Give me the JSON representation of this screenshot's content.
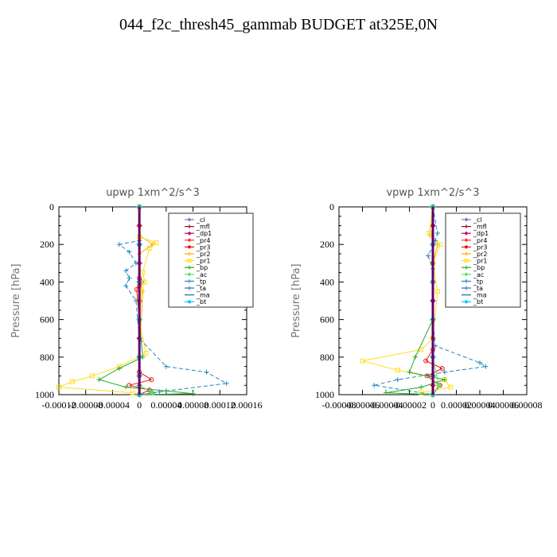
{
  "page": {
    "title": "044_f2c_thresh45_gammab  BUDGET at325E,0N"
  },
  "chart_data": [
    {
      "type": "line",
      "title": "upwp   1xm^2/s^3",
      "ylabel": "Pressure  [hPa]",
      "ylim": [
        1000,
        0
      ],
      "yticks": [
        0,
        200,
        400,
        600,
        800,
        1000
      ],
      "xlim": [
        -0.00012,
        0.00016
      ],
      "xtick_labels": [
        "-0.00012",
        "-0.00008",
        "-0.00004",
        "0",
        "0.00004",
        "0.00008",
        "0.00012",
        "0.00016"
      ],
      "xtick_values": [
        -0.00012,
        -8e-05,
        -4e-05,
        0,
        4e-05,
        8e-05,
        0.00012,
        0.00016
      ],
      "legend_position": "top-right",
      "series": [
        {
          "name": "_cl",
          "color": "#9966cc",
          "marker": "diamond",
          "x": [
            0,
            0,
            0,
            0,
            0,
            0,
            0,
            0,
            0,
            0,
            0
          ],
          "y": [
            0,
            100,
            200,
            300,
            400,
            500,
            600,
            700,
            800,
            900,
            1000
          ]
        },
        {
          "name": "_mfl",
          "color": "#990033",
          "marker": "plus",
          "x": [
            0,
            0,
            0,
            0,
            0,
            0,
            0,
            0,
            0,
            0,
            0
          ],
          "y": [
            0,
            100,
            200,
            300,
            400,
            500,
            600,
            700,
            800,
            900,
            1000
          ]
        },
        {
          "name": "_dp1",
          "color": "#cc0066",
          "marker": "diamond",
          "x": [
            0,
            0,
            0,
            0,
            0,
            0,
            0,
            0,
            0,
            0,
            0
          ],
          "y": [
            0,
            100,
            200,
            300,
            400,
            500,
            600,
            700,
            800,
            900,
            1000
          ]
        },
        {
          "name": "_pr4",
          "color": "#ff3333",
          "marker": "diamond",
          "x": [
            0,
            0,
            0,
            0,
            0,
            0,
            0,
            0,
            0,
            0,
            0
          ],
          "y": [
            0,
            100,
            200,
            300,
            400,
            500,
            600,
            700,
            800,
            900,
            1000
          ]
        },
        {
          "name": "_pr3",
          "color": "#ee1111",
          "marker": "circle",
          "x": [
            0,
            0,
            0,
            3e-06,
            0,
            -4e-06,
            0,
            0,
            0,
            1.8e-05,
            -1.5e-05,
            1.5e-05,
            0
          ],
          "y": [
            0,
            200,
            380,
            400,
            420,
            440,
            600,
            800,
            880,
            920,
            950,
            975,
            1000
          ]
        },
        {
          "name": "_pr2",
          "color": "#ffaa00",
          "marker": "plus",
          "x": [
            0,
            0,
            2e-05,
            0,
            0,
            5e-06,
            0,
            0
          ],
          "y": [
            0,
            150,
            200,
            250,
            400,
            450,
            800,
            1000
          ]
        },
        {
          "name": "_pr1",
          "color": "#ffdd22",
          "marker": "square",
          "x": [
            0,
            0,
            2.5e-05,
            1.5e-05,
            5e-06,
            8e-06,
            3e-06,
            0,
            1e-05,
            -3e-05,
            -7e-05,
            -0.0001,
            -0.00012,
            -1e-05,
            0
          ],
          "y": [
            0,
            160,
            190,
            220,
            350,
            400,
            450,
            600,
            780,
            850,
            900,
            930,
            960,
            990,
            1000
          ]
        },
        {
          "name": "_bp",
          "color": "#22aa22",
          "marker": "plus",
          "x": [
            0,
            0,
            0,
            0,
            5e-06,
            -3e-05,
            -6e-05,
            -2e-05,
            4e-05,
            8e-05,
            0
          ],
          "y": [
            0,
            200,
            400,
            600,
            800,
            860,
            920,
            960,
            980,
            995,
            1000
          ]
        },
        {
          "name": "_ac",
          "color": "#66dd66",
          "marker": "diamond",
          "x": [
            0,
            0,
            0,
            0,
            0,
            0,
            2e-05,
            0
          ],
          "y": [
            0,
            200,
            400,
            600,
            800,
            950,
            990,
            1000
          ]
        },
        {
          "name": "_tp",
          "color": "#2288bb",
          "marker": "plus",
          "x": [
            0,
            0,
            -3e-05,
            -1.5e-05,
            -5e-06,
            -2e-05,
            -1.5e-05,
            -2e-05,
            -5e-06,
            0,
            4e-05,
            0.0001,
            0.00013,
            3e-05,
            0
          ],
          "y": [
            0,
            180,
            200,
            240,
            300,
            340,
            380,
            420,
            500,
            700,
            850,
            880,
            940,
            985,
            1000
          ]
        },
        {
          "name": "_ta",
          "color": "#3366cc",
          "marker": "plus",
          "x": [
            0,
            0,
            0,
            0,
            0,
            0,
            0,
            0
          ],
          "y": [
            0,
            200,
            400,
            600,
            800,
            900,
            950,
            1000
          ]
        },
        {
          "name": "_ma",
          "color": "#0077aa",
          "marker": "none",
          "x": [
            0,
            0,
            0,
            0,
            0,
            0,
            0
          ],
          "y": [
            0,
            200,
            400,
            600,
            800,
            900,
            1000
          ]
        },
        {
          "name": "_bt",
          "color": "#00ccee",
          "marker": "circle",
          "x": [
            0,
            0,
            0,
            0,
            0,
            0,
            0
          ],
          "y": [
            0,
            200,
            400,
            600,
            800,
            900,
            1000
          ]
        }
      ]
    },
    {
      "type": "line",
      "title": "vpwp   1xm^2/s^3",
      "ylabel": "Pressure  [hPa]",
      "ylim": [
        1000,
        0
      ],
      "yticks": [
        0,
        200,
        400,
        600,
        800,
        1000
      ],
      "xlim": [
        -8e-05,
        8e-05
      ],
      "xtick_labels": [
        "-0.00008",
        "-0.00006",
        "-0.00004",
        "-0.00002",
        "0",
        "0.00002",
        "0.00004",
        "0.00006",
        "0.00008"
      ],
      "xtick_values": [
        -8e-05,
        -6e-05,
        -4e-05,
        -2e-05,
        0,
        2e-05,
        4e-05,
        6e-05,
        8e-05
      ],
      "legend_position": "top-right",
      "series": [
        {
          "name": "_cl",
          "color": "#9966cc",
          "marker": "diamond",
          "x": [
            0,
            0,
            0,
            0,
            0,
            0,
            0,
            0,
            0,
            0,
            0
          ],
          "y": [
            0,
            100,
            200,
            300,
            400,
            500,
            600,
            700,
            800,
            900,
            1000
          ]
        },
        {
          "name": "_mfl",
          "color": "#990033",
          "marker": "plus",
          "x": [
            0,
            0,
            0,
            0,
            0,
            0,
            0,
            0,
            0,
            0,
            0
          ],
          "y": [
            0,
            100,
            200,
            300,
            400,
            500,
            600,
            700,
            800,
            900,
            1000
          ]
        },
        {
          "name": "_dp1",
          "color": "#cc0066",
          "marker": "diamond",
          "x": [
            0,
            0,
            0,
            0,
            0,
            0,
            0,
            0,
            0,
            0,
            0
          ],
          "y": [
            0,
            100,
            200,
            300,
            400,
            500,
            600,
            700,
            800,
            900,
            1000
          ]
        },
        {
          "name": "_pr4",
          "color": "#ff3333",
          "marker": "diamond",
          "x": [
            0,
            0,
            0,
            0,
            0,
            0,
            0,
            0
          ],
          "y": [
            0,
            200,
            400,
            600,
            800,
            900,
            950,
            1000
          ]
        },
        {
          "name": "_pr3",
          "color": "#ee1111",
          "marker": "circle",
          "x": [
            0,
            0,
            0,
            0,
            -6e-06,
            8e-06,
            -5e-06,
            6e-06,
            0
          ],
          "y": [
            0,
            200,
            400,
            760,
            820,
            860,
            900,
            950,
            1000
          ]
        },
        {
          "name": "_pr2",
          "color": "#ffaa00",
          "marker": "plus",
          "x": [
            0,
            -3e-06,
            4e-06,
            0,
            0,
            0
          ],
          "y": [
            0,
            150,
            200,
            300,
            500,
            1000
          ]
        },
        {
          "name": "_pr1",
          "color": "#ffdd22",
          "marker": "square",
          "x": [
            0,
            -3e-06,
            6e-06,
            0,
            4e-06,
            0,
            -1e-05,
            -6e-05,
            -3e-05,
            1e-05,
            1.5e-05,
            -1e-05,
            0
          ],
          "y": [
            0,
            140,
            200,
            300,
            450,
            700,
            760,
            820,
            870,
            920,
            960,
            990,
            1000
          ]
        },
        {
          "name": "_bp",
          "color": "#22aa22",
          "marker": "plus",
          "x": [
            0,
            0,
            0,
            0,
            -1.5e-05,
            -2e-05,
            1e-05,
            -1e-05,
            -4e-05,
            0
          ],
          "y": [
            0,
            200,
            400,
            600,
            800,
            880,
            920,
            960,
            990,
            1000
          ]
        },
        {
          "name": "_ac",
          "color": "#66dd66",
          "marker": "diamond",
          "x": [
            0,
            0,
            0,
            0,
            0,
            5e-06,
            0
          ],
          "y": [
            0,
            200,
            400,
            600,
            800,
            950,
            1000
          ]
        },
        {
          "name": "_tp",
          "color": "#2288bb",
          "marker": "plus",
          "x": [
            0,
            4e-06,
            2e-06,
            -4e-06,
            0,
            0,
            0,
            2e-06,
            4e-05,
            4.5e-05,
            1e-05,
            -3e-05,
            -5e-05,
            0
          ],
          "y": [
            0,
            140,
            180,
            260,
            330,
            500,
            600,
            740,
            830,
            850,
            880,
            920,
            950,
            1000
          ]
        },
        {
          "name": "_ta",
          "color": "#3366cc",
          "marker": "plus",
          "x": [
            0,
            0,
            0,
            0,
            0,
            0,
            0
          ],
          "y": [
            0,
            200,
            400,
            600,
            800,
            900,
            1000
          ]
        },
        {
          "name": "_ma",
          "color": "#0077aa",
          "marker": "none",
          "x": [
            0,
            0,
            0,
            0,
            0,
            0,
            0
          ],
          "y": [
            0,
            200,
            400,
            600,
            800,
            900,
            1000
          ]
        },
        {
          "name": "_bt",
          "color": "#00ccee",
          "marker": "circle",
          "x": [
            0,
            0,
            0,
            0,
            0,
            0,
            0
          ],
          "y": [
            0,
            200,
            400,
            600,
            800,
            900,
            1000
          ]
        }
      ]
    }
  ]
}
